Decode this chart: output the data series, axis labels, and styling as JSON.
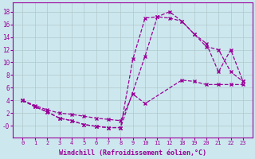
{
  "xlabel": "Windchill (Refroidissement éolien,°C)",
  "bg_color": "#cce8ee",
  "line_color": "#990099",
  "grid_color": "#b0c8cc",
  "xlim": [
    -0.8,
    24
  ],
  "ylim": [
    -1.8,
    19.5
  ],
  "xtick_vals": [
    0,
    1,
    2,
    3,
    4,
    5,
    6,
    7,
    8,
    9,
    10,
    11,
    12,
    18,
    19,
    20,
    21,
    22,
    23
  ],
  "ytick_vals": [
    0,
    2,
    4,
    6,
    8,
    10,
    12,
    14,
    16,
    18
  ],
  "ytick_labels": [
    "-0",
    "2",
    "4",
    "6",
    "8",
    "10",
    "12",
    "14",
    "16",
    "18"
  ],
  "curve1_x": [
    0,
    1,
    2,
    3,
    4,
    5,
    6,
    7,
    8,
    9,
    10,
    11,
    12,
    18,
    19,
    20,
    21,
    22,
    23
  ],
  "curve1_y": [
    4,
    3,
    2.2,
    1.2,
    0.8,
    0.2,
    -0.1,
    -0.3,
    -0.3,
    10.5,
    17,
    17.2,
    18,
    16.5,
    14.5,
    13,
    8.5,
    12,
    7
  ],
  "curve2_x": [
    0,
    1,
    2,
    3,
    4,
    5,
    6,
    7,
    8,
    10,
    11,
    12,
    18,
    19,
    20,
    21,
    22,
    23
  ],
  "curve2_y": [
    4,
    3,
    2.2,
    1.2,
    0.8,
    0.2,
    -0.1,
    -0.3,
    -0.3,
    11,
    17.2,
    17,
    16.5,
    14.5,
    12.5,
    12,
    8.5,
    7
  ],
  "curve3_x": [
    0,
    1,
    2,
    3,
    4,
    5,
    6,
    7,
    8,
    9,
    10,
    18,
    19,
    20,
    21,
    22,
    23
  ],
  "curve3_y": [
    4,
    3.2,
    2.5,
    2,
    1.8,
    1.5,
    1.2,
    1.0,
    0.8,
    5,
    3.5,
    7.2,
    7,
    6.5,
    6.5,
    6.5,
    6.5
  ]
}
